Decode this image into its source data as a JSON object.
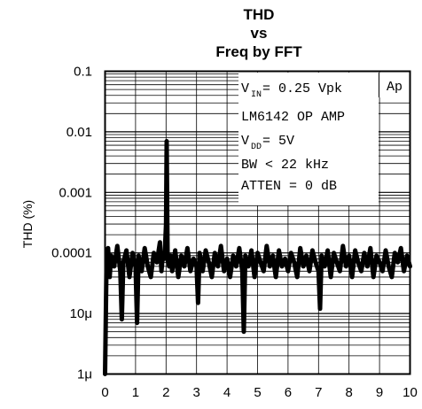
{
  "chart_data": {
    "type": "line",
    "title_lines": [
      "THD",
      "vs",
      "Freq by FFT"
    ],
    "xlabel": "",
    "ylabel": "THD (%)",
    "xlim": [
      0,
      10
    ],
    "ylim": [
      1e-06,
      0.1
    ],
    "y_scale": "log",
    "grid": true,
    "x_ticks": [
      "0",
      "1",
      "2",
      "3",
      "4",
      "5",
      "6",
      "7",
      "8",
      "9",
      "10"
    ],
    "y_ticks": [
      {
        "value": 0.1,
        "label": "0.1"
      },
      {
        "value": 0.01,
        "label": "0.01"
      },
      {
        "value": 0.001,
        "label": "0.001"
      },
      {
        "value": 0.0001,
        "label": "0.0001"
      },
      {
        "value": 1e-05,
        "label": "10μ"
      },
      {
        "value": 1e-06,
        "label": "1μ"
      }
    ],
    "annotation": {
      "vin": {
        "main": "V",
        "sub": "IN",
        "rest": " = 0.25 Vpk"
      },
      "ap": "Ap",
      "part": "LM6142 OP AMP",
      "vdd": {
        "main": "V",
        "sub": "DD",
        "rest": " = 5V"
      },
      "bw": "BW < 22 kHz",
      "atten": "ATTEN = 0 dB"
    },
    "series": [
      {
        "x": [
          0,
          0.05,
          0.1,
          0.15,
          0.2,
          0.3,
          0.4,
          0.5,
          0.55,
          0.6,
          0.7,
          0.8,
          0.9,
          1.0,
          1.05,
          1.1,
          1.2,
          1.3,
          1.4,
          1.5,
          1.6,
          1.7,
          1.8,
          1.85,
          1.9,
          1.95,
          2.0,
          2.02,
          2.05,
          2.1,
          2.15,
          2.2,
          2.3,
          2.4,
          2.5,
          2.6,
          2.7,
          2.8,
          2.9,
          3.0,
          3.05,
          3.1,
          3.2,
          3.3,
          3.4,
          3.5,
          3.6,
          3.7,
          3.8,
          3.9,
          4.0,
          4.1,
          4.2,
          4.3,
          4.4,
          4.5,
          4.55,
          4.6,
          4.7,
          4.8,
          4.9,
          5.0,
          5.1,
          5.2,
          5.3,
          5.4,
          5.5,
          5.6,
          5.7,
          5.8,
          5.9,
          6.0,
          6.1,
          6.2,
          6.3,
          6.4,
          6.5,
          6.6,
          6.7,
          6.8,
          6.9,
          7.0,
          7.05,
          7.1,
          7.2,
          7.3,
          7.4,
          7.5,
          7.6,
          7.7,
          7.8,
          7.9,
          8.0,
          8.1,
          8.2,
          8.3,
          8.4,
          8.5,
          8.6,
          8.7,
          8.8,
          8.9,
          9.0,
          9.1,
          9.2,
          9.3,
          9.4,
          9.5,
          9.6,
          9.7,
          9.8,
          9.9,
          10.0
        ],
        "y": [
          1e-06,
          8e-05,
          0.00012,
          4e-05,
          9e-05,
          6e-05,
          0.00013,
          5e-05,
          8e-06,
          7e-05,
          0.00011,
          4e-05,
          0.0001,
          6e-05,
          7e-06,
          9e-05,
          5e-05,
          0.00012,
          6e-05,
          4e-05,
          0.0001,
          7e-05,
          0.00015,
          5e-05,
          0.0001,
          8e-05,
          0.0003,
          0.007,
          0.0001,
          6e-05,
          9e-05,
          5e-05,
          0.00011,
          4e-05,
          9e-05,
          6e-05,
          0.00012,
          5e-05,
          8e-05,
          6e-05,
          1.5e-05,
          0.0001,
          5e-05,
          0.00011,
          7e-05,
          4e-05,
          0.0001,
          6e-05,
          0.00013,
          5e-05,
          8e-05,
          4e-05,
          9e-05,
          6e-05,
          0.00012,
          5e-05,
          5e-06,
          9e-05,
          6e-05,
          0.00011,
          4e-05,
          0.0001,
          7e-05,
          5e-05,
          0.00013,
          6e-05,
          9e-05,
          4e-05,
          0.00011,
          6e-05,
          8e-05,
          5e-05,
          0.0001,
          7e-05,
          4e-05,
          0.00012,
          6e-05,
          9e-05,
          5e-05,
          0.00011,
          7e-05,
          5e-05,
          1.2e-05,
          9e-05,
          6e-05,
          0.00011,
          4e-05,
          0.0001,
          7e-05,
          5e-05,
          0.00013,
          6e-05,
          9e-05,
          4e-05,
          0.00011,
          7e-05,
          5e-05,
          0.0001,
          6e-05,
          0.00012,
          4e-05,
          9e-05,
          7e-05,
          5e-05,
          0.00011,
          6e-05,
          4e-05,
          0.0001,
          7e-05,
          0.00012,
          5e-05,
          9e-05,
          6e-05
        ]
      }
    ]
  }
}
